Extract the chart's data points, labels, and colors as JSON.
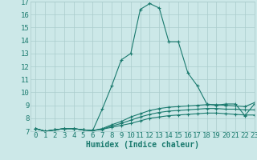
{
  "title": "",
  "xlabel": "Humidex (Indice chaleur)",
  "xlim": [
    -0.5,
    23
  ],
  "ylim": [
    7,
    17
  ],
  "yticks": [
    7,
    8,
    9,
    10,
    11,
    12,
    13,
    14,
    15,
    16,
    17
  ],
  "xticks": [
    0,
    1,
    2,
    3,
    4,
    5,
    6,
    7,
    8,
    9,
    10,
    11,
    12,
    13,
    14,
    15,
    16,
    17,
    18,
    19,
    20,
    21,
    22,
    23
  ],
  "bg_color": "#cce8e8",
  "line_color": "#1a7a6e",
  "grid_color": "#aacccc",
  "series": [
    [
      7.2,
      7.0,
      7.1,
      7.2,
      7.2,
      7.1,
      7.05,
      8.7,
      10.5,
      12.5,
      13.0,
      16.4,
      16.85,
      16.5,
      13.9,
      13.9,
      11.5,
      10.5,
      9.1,
      9.0,
      9.1,
      9.1,
      8.2,
      9.1
    ],
    [
      7.2,
      7.0,
      7.1,
      7.2,
      7.2,
      7.1,
      7.05,
      7.15,
      7.3,
      7.45,
      7.6,
      7.8,
      8.0,
      8.1,
      8.2,
      8.25,
      8.3,
      8.35,
      8.4,
      8.4,
      8.35,
      8.3,
      8.25,
      8.25
    ],
    [
      7.2,
      7.0,
      7.1,
      7.2,
      7.2,
      7.1,
      7.05,
      7.15,
      7.4,
      7.6,
      7.85,
      8.1,
      8.3,
      8.45,
      8.55,
      8.6,
      8.65,
      8.7,
      8.75,
      8.75,
      8.7,
      8.7,
      8.65,
      8.65
    ],
    [
      7.2,
      7.0,
      7.1,
      7.2,
      7.2,
      7.1,
      7.05,
      7.2,
      7.5,
      7.75,
      8.1,
      8.35,
      8.6,
      8.75,
      8.85,
      8.9,
      8.95,
      9.0,
      9.05,
      9.05,
      9.0,
      8.95,
      8.9,
      9.2
    ]
  ],
  "font_size_label": 7,
  "font_size_tick": 6.5
}
